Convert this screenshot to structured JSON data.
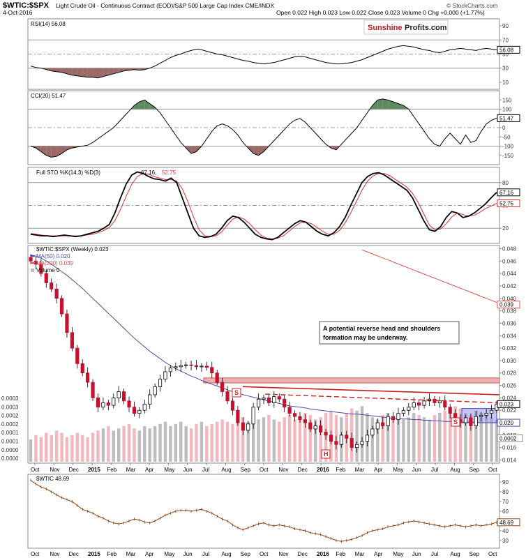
{
  "header": {
    "symbol": "$WTIC:$SPX",
    "description": "Light Crude Oil - Continuous Contract (EOD)/S&P 500 Large Cap Index CME/INDX",
    "date": "4-Oct-2016",
    "ohlc": "Open 0.022  High 0.023  Low 0.022  Close 0.023  Volume 0  Chg +0.000 (+1.77%)",
    "brand": "© StockCharts.com",
    "watermark_left": "Sunshine",
    "watermark_right": "Profits.com"
  },
  "annotation": {
    "line1": "A potential reverse head and shoulders",
    "line2": "formation may be underway."
  },
  "chart_data": [
    {
      "type": "line",
      "name": "rsi",
      "legend": "RSI(14) 56.08",
      "last_label": "56.08",
      "ylim": [
        0,
        100
      ],
      "ticks": [
        90,
        70,
        50,
        30,
        10
      ],
      "reference_lines": [
        70,
        50,
        30
      ],
      "values": [
        33,
        31,
        30,
        28,
        26,
        25,
        24,
        22,
        20,
        19,
        18,
        17,
        17,
        16,
        18,
        20,
        22,
        24,
        26,
        27,
        28,
        27,
        28,
        30,
        33,
        37,
        41,
        45,
        48,
        50,
        53,
        55,
        57,
        56,
        54,
        52,
        50,
        49,
        47,
        45,
        43,
        41,
        40,
        38,
        37,
        36,
        37,
        38,
        40,
        42,
        44,
        46,
        47,
        46,
        44,
        42,
        40,
        38,
        37,
        36,
        36,
        37,
        38,
        40,
        42,
        45,
        48,
        51,
        54,
        57,
        59,
        61,
        62,
        61,
        60,
        58,
        56,
        55,
        53,
        52,
        54,
        56,
        57,
        58,
        57,
        56,
        55,
        57,
        58,
        57,
        56.08
      ]
    },
    {
      "type": "line",
      "name": "cci",
      "legend": "CCI(20) 51.47",
      "last_label": "51.47",
      "ylim": [
        -200,
        200
      ],
      "ticks": [
        150,
        100,
        50,
        0,
        -50,
        -100,
        -150
      ],
      "reference_lines": [
        100,
        0,
        -100
      ],
      "values": [
        -100,
        -110,
        -130,
        -150,
        -160,
        -155,
        -140,
        -120,
        -110,
        -105,
        -100,
        -95,
        -80,
        -60,
        -40,
        -20,
        0,
        30,
        60,
        90,
        120,
        140,
        150,
        130,
        110,
        80,
        40,
        0,
        -40,
        -80,
        -110,
        -140,
        -130,
        -100,
        -60,
        -20,
        10,
        20,
        10,
        -10,
        -40,
        -80,
        -110,
        -140,
        -150,
        -130,
        -100,
        -70,
        -40,
        -10,
        20,
        40,
        50,
        30,
        0,
        -30,
        -60,
        -90,
        -110,
        -120,
        -90,
        -60,
        -30,
        0,
        40,
        80,
        120,
        150,
        155,
        150,
        140,
        130,
        120,
        100,
        60,
        20,
        -20,
        -60,
        -90,
        -100,
        -60,
        -30,
        -60,
        -90,
        -40,
        -80,
        -70,
        -20,
        20,
        40,
        51.47
      ]
    },
    {
      "type": "line",
      "name": "stochastic",
      "legend": "Full STO %K(14,3) %D(3) 67.16, 52.75",
      "last_labels": [
        "67.16",
        "52.75"
      ],
      "ylim": [
        0,
        100
      ],
      "ticks": [
        80,
        50,
        20
      ],
      "reference_lines": [
        80,
        50,
        20
      ],
      "series": [
        {
          "name": "%K(14,3) 67.16",
          "values": [
            12,
            11,
            10,
            10,
            9,
            10,
            11,
            10,
            9,
            10,
            12,
            14,
            16,
            20,
            25,
            40,
            60,
            78,
            90,
            94,
            92,
            88,
            85,
            84,
            82,
            86,
            80,
            60,
            40,
            20,
            10,
            8,
            9,
            12,
            20,
            30,
            36,
            34,
            28,
            20,
            12,
            8,
            6,
            5,
            8,
            14,
            20,
            26,
            30,
            28,
            22,
            16,
            12,
            10,
            14,
            22,
            34,
            50,
            65,
            80,
            88,
            92,
            93,
            90,
            85,
            80,
            75,
            70,
            60,
            45,
            30,
            18,
            16,
            22,
            34,
            42,
            40,
            34,
            36,
            40,
            46,
            52,
            60,
            67.16
          ]
        },
        {
          "name": "%D(3) 52.75",
          "values": [
            13,
            12,
            11,
            10,
            10,
            10,
            10,
            10,
            10,
            10,
            11,
            12,
            14,
            17,
            21,
            30,
            45,
            62,
            78,
            88,
            92,
            91,
            88,
            86,
            84,
            84,
            82,
            72,
            55,
            35,
            18,
            10,
            9,
            10,
            15,
            24,
            32,
            35,
            32,
            26,
            18,
            11,
            7,
            6,
            7,
            10,
            16,
            22,
            27,
            28,
            26,
            21,
            16,
            12,
            12,
            17,
            27,
            40,
            55,
            70,
            82,
            89,
            92,
            92,
            89,
            84,
            79,
            74,
            66,
            54,
            39,
            24,
            18,
            19,
            26,
            35,
            40,
            38,
            36,
            37,
            41,
            46,
            49,
            52.75
          ]
        }
      ]
    },
    {
      "type": "candlestick",
      "name": "wtic_spx_weekly",
      "legend": "$WTIC:$SPX (Weekly) 0.023",
      "legend_ma50": "MA(50) 0.020",
      "legend_ma200": "MA(200) 0.039",
      "legend_volume": "Volume 0",
      "last_labels": [
        "0.023",
        "0.020",
        "0.039",
        "0.0002"
      ],
      "ylim": [
        0.0135,
        0.0485
      ],
      "ticks": [
        0.048,
        0.046,
        0.044,
        0.042,
        0.04,
        0.038,
        0.036,
        0.034,
        0.032,
        0.03,
        0.028,
        0.026,
        0.024,
        0.022,
        0.02,
        0.018,
        0.016,
        0.014
      ],
      "volume_ticks": [
        "0.0003",
        "0.0003",
        "0.0002",
        "0.0002",
        "0.0001",
        "0.0001",
        "0.0000",
        "0.0000"
      ],
      "x_labels": [
        "Oct",
        "Nov",
        "Dec",
        "2015",
        "Feb",
        "Mar",
        "Apr",
        "May",
        "Jun",
        "Jul",
        "Aug",
        "Sep",
        "Oct",
        "Nov",
        "Dec",
        "2016",
        "Feb",
        "Mar",
        "Apr",
        "May",
        "Jun",
        "Jul",
        "Aug",
        "Sep",
        "Oct"
      ],
      "close": [
        0.046,
        0.0455,
        0.044,
        0.0425,
        0.0415,
        0.04,
        0.0375,
        0.0345,
        0.032,
        0.0295,
        0.028,
        0.0265,
        0.024,
        0.0225,
        0.0232,
        0.0228,
        0.024,
        0.025,
        0.0235,
        0.0225,
        0.0215,
        0.022,
        0.023,
        0.0245,
        0.0258,
        0.027,
        0.0282,
        0.0288,
        0.029,
        0.0292,
        0.0293,
        0.0292,
        0.029,
        0.0291,
        0.0289,
        0.028,
        0.0265,
        0.025,
        0.0235,
        0.022,
        0.02,
        0.0188,
        0.0198,
        0.0225,
        0.0238,
        0.024,
        0.0232,
        0.0242,
        0.0238,
        0.0225,
        0.0215,
        0.021,
        0.0205,
        0.02,
        0.019,
        0.0195,
        0.0185,
        0.018,
        0.017,
        0.0165,
        0.018,
        0.0175,
        0.016,
        0.0165,
        0.017,
        0.018,
        0.019,
        0.02,
        0.0195,
        0.021,
        0.0205,
        0.0215,
        0.022,
        0.0225,
        0.0232,
        0.0228,
        0.0235,
        0.0238,
        0.0232,
        0.0235,
        0.0225,
        0.0215,
        0.0205,
        0.02,
        0.0208,
        0.0195,
        0.021,
        0.0212,
        0.0215,
        0.022,
        0.023
      ],
      "ma50": [
        0.047,
        0.0468,
        0.0465,
        0.046,
        0.0455,
        0.0449,
        0.0443,
        0.0437,
        0.043,
        0.0423,
        0.0416,
        0.0408,
        0.04,
        0.0392,
        0.0384,
        0.0376,
        0.0368,
        0.036,
        0.0352,
        0.0344,
        0.0336,
        0.0329,
        0.0322,
        0.0315,
        0.0309,
        0.0303,
        0.0297,
        0.0292,
        0.0287,
        0.0283,
        0.0279,
        0.0275,
        0.0272,
        0.0268,
        0.0265,
        0.0262,
        0.0259,
        0.0256,
        0.0253,
        0.025,
        0.0248,
        0.0245,
        0.0243,
        0.0241,
        0.0239,
        0.0237,
        0.0235,
        0.0233,
        0.0231,
        0.0229,
        0.0227,
        0.0226,
        0.0225,
        0.0224,
        0.0222,
        0.0221,
        0.022,
        0.0219,
        0.0218,
        0.0217,
        0.0216,
        0.0215,
        0.0214,
        0.0214,
        0.0213,
        0.0212,
        0.0211,
        0.021,
        0.0209,
        0.0208,
        0.0207,
        0.0207,
        0.0206,
        0.0206,
        0.0205,
        0.0205,
        0.0204,
        0.0204,
        0.0203,
        0.0203,
        0.0202,
        0.0202,
        0.0202,
        0.0201,
        0.0201,
        0.0201,
        0.0201,
        0.02,
        0.02,
        0.02,
        0.02
      ],
      "volume": [
        0.0001,
        0.00012,
        0.00011,
        0.00013,
        0.00012,
        0.00014,
        0.00013,
        0.00011,
        0.00012,
        0.00013,
        0.00012,
        0.00011,
        0.00013,
        0.00014,
        0.00015,
        0.00016,
        0.00014,
        0.00015,
        0.00016,
        0.00017,
        0.00015,
        0.00014,
        0.00016,
        0.00015,
        0.00016,
        0.00017,
        0.00018,
        0.00016,
        0.00017,
        0.00018,
        0.00016,
        0.00015,
        0.00017,
        0.00018,
        0.00016,
        0.00017,
        0.00018,
        0.00019,
        0.00018,
        0.00017,
        0.00019,
        0.0002,
        0.00018,
        0.00017,
        0.00019,
        0.0002,
        0.00021,
        0.00019,
        0.00018,
        0.0002,
        0.00021,
        0.00019,
        0.0002,
        0.00022,
        0.00021,
        0.00019,
        0.0002,
        0.00022,
        0.00023,
        0.00021,
        0.0002,
        0.00022,
        0.00024,
        0.00023,
        0.00025,
        0.00022,
        0.0002,
        0.00019,
        0.00021,
        0.00022,
        0.0002,
        0.00021,
        0.00019,
        0.0002,
        0.00022,
        0.00021,
        0.0002,
        0.00019,
        0.00021,
        0.00022,
        0.00023,
        0.00024,
        0.00025,
        0.00024,
        0.00022,
        0.00021,
        0.00023,
        0.00022,
        0.00021,
        0.0002,
        0.00019
      ]
    },
    {
      "type": "line",
      "name": "wtic",
      "legend": "$WTIC 48.69",
      "last_label": "48.69",
      "ylim": [
        22,
        98
      ],
      "ticks": [
        90,
        80,
        70,
        60,
        50,
        40,
        30
      ],
      "x_labels": [
        "Oct",
        "Nov",
        "Dec",
        "2015",
        "Feb",
        "Mar",
        "Apr",
        "May",
        "Jun",
        "Jul",
        "Aug",
        "Sep",
        "Oct",
        "Nov",
        "Dec",
        "2016",
        "Feb",
        "Mar",
        "Apr",
        "May",
        "Jun",
        "Jul",
        "Aug",
        "Sep",
        "Oct"
      ],
      "values": [
        92,
        88,
        85,
        83,
        80,
        77,
        74,
        72,
        70,
        66,
        62,
        60,
        58,
        55,
        53,
        50,
        48,
        47,
        48,
        50,
        52,
        51,
        49,
        48,
        50,
        53,
        56,
        58,
        60,
        61,
        61,
        60,
        61,
        62,
        60,
        58,
        55,
        52,
        50,
        46,
        43,
        41,
        43,
        45,
        47,
        48,
        46,
        45,
        46,
        45,
        44,
        42,
        41,
        40,
        38,
        37,
        36,
        34,
        32,
        30,
        29,
        30,
        31,
        33,
        35,
        38,
        40,
        41,
        42,
        44,
        45,
        46,
        48,
        49,
        50,
        49,
        48,
        47,
        46,
        45,
        44,
        45,
        46,
        45,
        44,
        45,
        46,
        45,
        46,
        47,
        48.69
      ]
    }
  ]
}
